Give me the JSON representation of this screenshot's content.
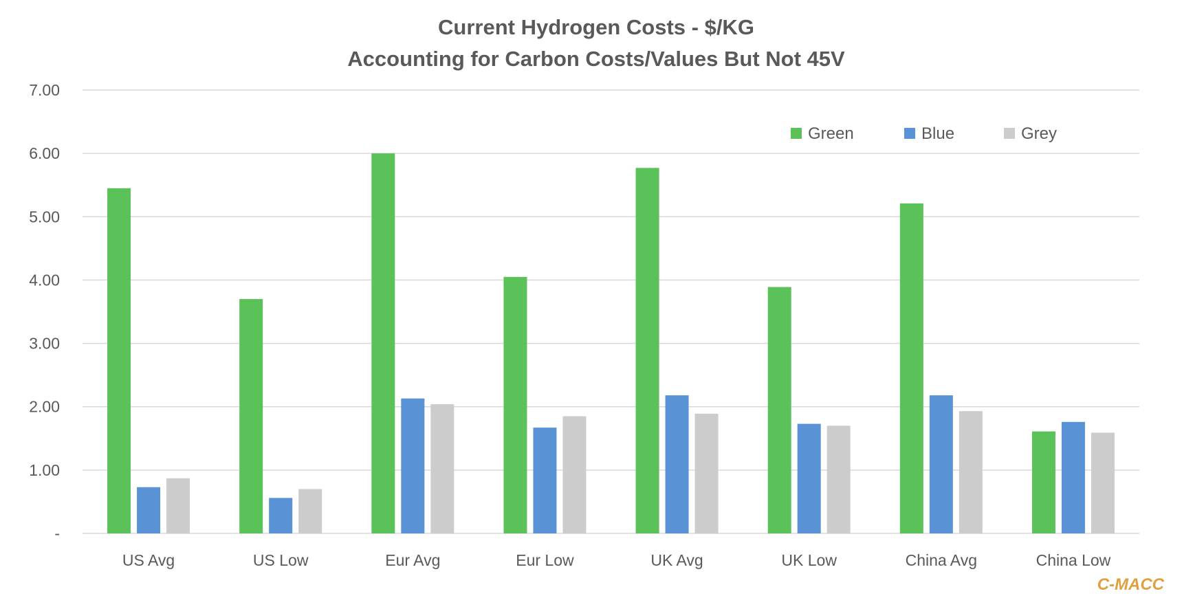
{
  "chart_data": {
    "type": "bar",
    "title": "Current Hydrogen Costs - $/KG",
    "subtitle": "Accounting for Carbon Costs/Values But Not 45V",
    "xlabel": "",
    "ylabel": "",
    "ylim": [
      0,
      7
    ],
    "yticks": [
      "-",
      "1.00",
      "2.00",
      "3.00",
      "4.00",
      "5.00",
      "6.00",
      "7.00"
    ],
    "grid": true,
    "legend_position": "top-right",
    "categories": [
      "US Avg",
      "US Low",
      "Eur Avg",
      "Eur Low",
      "UK Avg",
      "UK Low",
      "China Avg",
      "China Low"
    ],
    "series": [
      {
        "name": "Green",
        "color": "#5BC25A",
        "values": [
          5.45,
          3.7,
          6.0,
          4.05,
          5.77,
          3.89,
          5.21,
          1.61
        ]
      },
      {
        "name": "Blue",
        "color": "#5A92D6",
        "values": [
          0.73,
          0.56,
          2.13,
          1.67,
          2.18,
          1.73,
          2.18,
          1.76
        ]
      },
      {
        "name": "Grey",
        "color": "#CCCCCC",
        "values": [
          0.87,
          0.7,
          2.04,
          1.85,
          1.89,
          1.7,
          1.93,
          1.59
        ]
      }
    ]
  },
  "brand": "C-MACC"
}
